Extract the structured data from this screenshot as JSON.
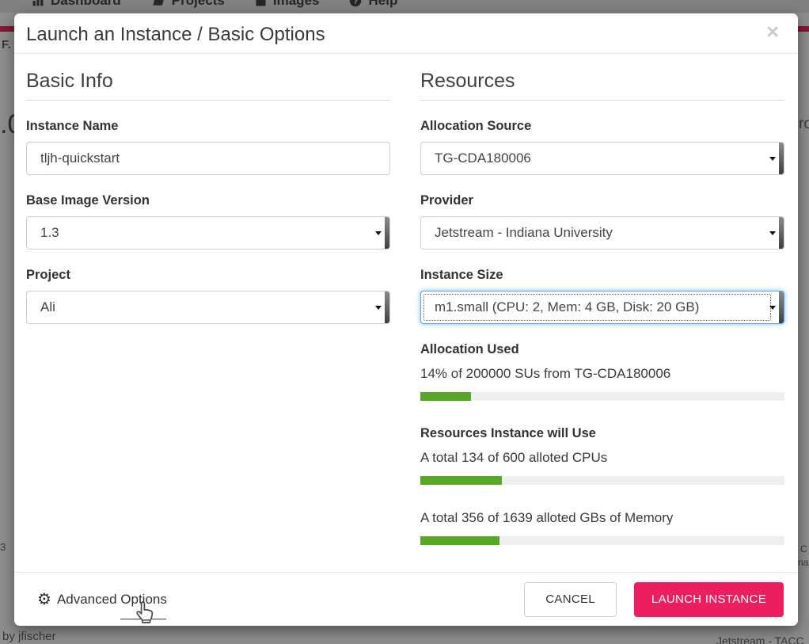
{
  "background": {
    "nav": {
      "items": [
        {
          "label": "Dashboard",
          "icon": "bar-chart-icon"
        },
        {
          "label": "Projects",
          "icon": "folder-icon"
        },
        {
          "label": "Images",
          "icon": "save-icon"
        },
        {
          "label": "Help",
          "icon": "help-circle-icon"
        }
      ]
    },
    "fragments": {
      "left_top": "F.",
      "left_big": ".0",
      "left_mid": "3",
      "bottom_left": "by jfischer",
      "right_top": "ro",
      "right_mid1": "C",
      "right_mid2": "na",
      "bottom_right": "Jetstream - TACC"
    }
  },
  "modal": {
    "title": "Launch an Instance / Basic Options",
    "icons": {
      "close": "×",
      "gear": "⚙"
    },
    "basic_info": {
      "heading": "Basic Info",
      "instance_name": {
        "label": "Instance Name",
        "value": "tljh-quickstart"
      },
      "base_image_version": {
        "label": "Base Image Version",
        "value": "1.3"
      },
      "project": {
        "label": "Project",
        "value": "Ali"
      }
    },
    "resources": {
      "heading": "Resources",
      "allocation_source": {
        "label": "Allocation Source",
        "value": "TG-CDA180006"
      },
      "provider": {
        "label": "Provider",
        "value": "Jetstream - Indiana University"
      },
      "instance_size": {
        "label": "Instance Size",
        "value": "m1.small (CPU: 2, Mem: 4 GB, Disk: 20 GB)",
        "focused": true
      },
      "allocation_used": {
        "label": "Allocation Used",
        "text": "14% of 200000 SUs from TG-CDA180006",
        "percent": 14
      },
      "instance_usage": {
        "label": "Resources Instance will Use",
        "cpu": {
          "text": "A total 134 of 600 alloted CPUs",
          "percent": 22.3
        },
        "memory": {
          "text": "A total 356 of 1639 alloted GBs of Memory",
          "percent": 21.7
        }
      }
    },
    "footer": {
      "advanced_options": "Advanced Options",
      "cancel": "CANCEL",
      "launch": "LAUNCH INSTANCE"
    }
  },
  "colors": {
    "accent_pink": "#ed1e5e",
    "progress_green": "#56a825",
    "progress_track": "#efefef",
    "maroon_bar": "#8c1437",
    "focus_blue": "#5ea8e8"
  }
}
